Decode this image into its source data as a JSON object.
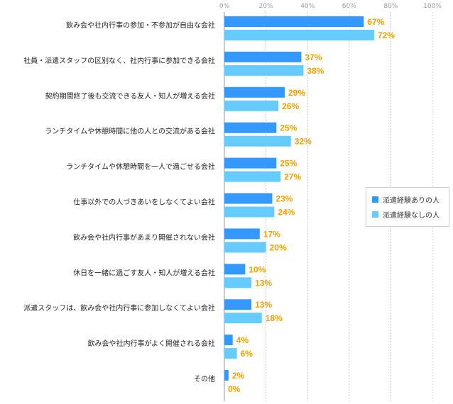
{
  "chart_data": {
    "type": "bar",
    "orientation": "horizontal",
    "title": "",
    "xlabel": "",
    "ylabel": "",
    "xlim": [
      0,
      100
    ],
    "ticks": [
      "0%",
      "20%",
      "40%",
      "60%",
      "80%",
      "100%"
    ],
    "tick_values": [
      0,
      20,
      40,
      60,
      80,
      100
    ],
    "categories": [
      "飲み会や社内行事の参加・不参加が自由な会社",
      "社員・派遣スタッフの区別なく、社内行事に参加できる会社",
      "契約期間終了後も交流できる友人・知人が増える会社",
      "ランチタイムや休憩時間に他の人との交流がある会社",
      "ランチタイムや休憩時間を一人で過ごせる会社",
      "仕事以外での人づきあいをしなくてよい会社",
      "飲み会や社内行事があまり開催されない会社",
      "休日を一緒に過ごす友人・知人が増える会社",
      "派遣スタッフは、飲み会や社内行事に参加しなくてよい会社",
      "飲み会や社内行事がよく開催される会社",
      "その他"
    ],
    "series": [
      {
        "name": "派遣経験ありの人",
        "color": "#3399ff",
        "values": [
          67,
          37,
          29,
          25,
          25,
          23,
          17,
          10,
          13,
          4,
          2
        ],
        "labels": [
          "67%",
          "37%",
          "29%",
          "25%",
          "25%",
          "23%",
          "17%",
          "10%",
          "13%",
          "4%",
          "2%"
        ]
      },
      {
        "name": "派遣経験なしの人",
        "color": "#66ccff",
        "values": [
          72,
          38,
          26,
          32,
          27,
          24,
          20,
          13,
          18,
          6,
          0
        ],
        "labels": [
          "72%",
          "38%",
          "26%",
          "32%",
          "27%",
          "24%",
          "20%",
          "13%",
          "18%",
          "6%",
          "0%"
        ]
      }
    ],
    "label_color": "#f5a000",
    "legend_position": "right"
  }
}
